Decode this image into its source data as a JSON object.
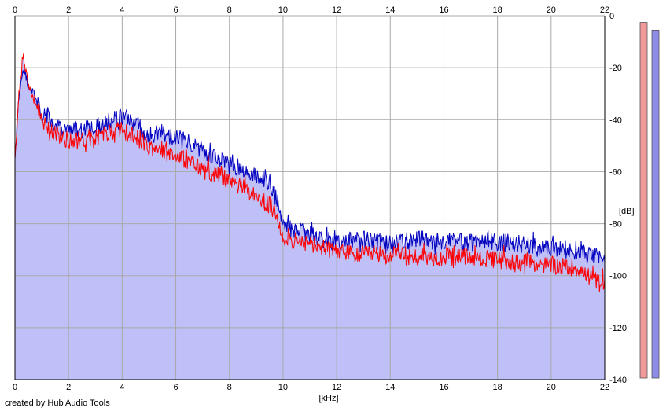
{
  "app": {
    "credit": "created by Hub Audio Tools"
  },
  "colors": {
    "background": "#ffffff",
    "fill": "#c0c0f8",
    "left_channel": "#ff0000",
    "right_channel": "#0000c0",
    "grid": "#a8a8a8",
    "meter_left": "#f29a9a",
    "meter_right": "#8c8ce6"
  },
  "chart_data": {
    "type": "line",
    "xlabel": "[kHz]",
    "ylabel": "[dB]",
    "xlim": [
      0,
      22
    ],
    "ylim": [
      -140,
      0
    ],
    "x_ticks": [
      "0",
      "2",
      "4",
      "6",
      "8",
      "10",
      "12",
      "14",
      "16",
      "18",
      "20",
      "22"
    ],
    "y_ticks": [
      "0",
      "-20",
      "-40",
      "-60",
      "-80",
      "-100",
      "-120",
      "-140"
    ],
    "grid": true,
    "series": [
      {
        "color": "#0000c0",
        "x": [
          0,
          0.15,
          0.3,
          0.5,
          0.8,
          1,
          1.5,
          2,
          2.5,
          3,
          3.5,
          4,
          4.5,
          5,
          5.5,
          6,
          6.5,
          7,
          7.5,
          8,
          8.5,
          9,
          9.5,
          9.8,
          10,
          10.5,
          11,
          11.5,
          12,
          13,
          14,
          15,
          16,
          17,
          18,
          19,
          20,
          21,
          21.5,
          22
        ],
        "y": [
          -55,
          -30,
          -20,
          -27,
          -32,
          -38,
          -42,
          -45,
          -44,
          -43,
          -41,
          -39,
          -42,
          -46,
          -45,
          -47,
          -49,
          -52,
          -55,
          -57,
          -59,
          -61,
          -64,
          -72,
          -80,
          -83,
          -84,
          -86,
          -87,
          -86,
          -88,
          -86,
          -87,
          -87,
          -87,
          -88,
          -90,
          -91,
          -92,
          -94
        ]
      },
      {
        "color": "#ff0000",
        "x": [
          0,
          0.15,
          0.3,
          0.5,
          0.8,
          1,
          1.5,
          2,
          2.5,
          3,
          3.5,
          4,
          4.5,
          5,
          5.5,
          6,
          6.5,
          7,
          7.5,
          8,
          8.5,
          9,
          9.5,
          9.8,
          10,
          10.5,
          11,
          11.5,
          12,
          13,
          14,
          15,
          16,
          17,
          18,
          19,
          20,
          21,
          21.5,
          22
        ],
        "y": [
          -55,
          -30,
          -14,
          -27,
          -34,
          -40,
          -45,
          -48,
          -48,
          -47,
          -45,
          -44,
          -47,
          -50,
          -52,
          -54,
          -56,
          -59,
          -61,
          -64,
          -66,
          -70,
          -73,
          -78,
          -85,
          -87,
          -88,
          -89,
          -91,
          -92,
          -92,
          -93,
          -93,
          -93,
          -94,
          -95,
          -96,
          -97,
          -101,
          -104
        ]
      }
    ],
    "meters": {
      "left_top_db": -2,
      "right_top_db": -5
    }
  }
}
